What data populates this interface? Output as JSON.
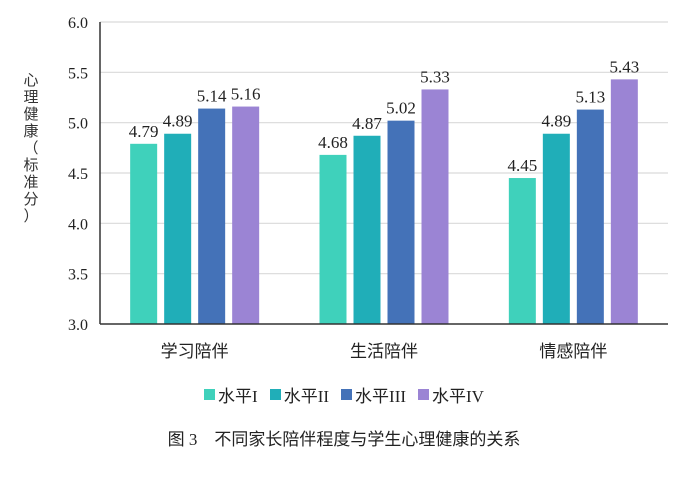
{
  "chart_data": {
    "type": "bar",
    "title": "",
    "xlabel": "",
    "ylabel": "心理健康（标准分）",
    "ylim": [
      3.0,
      6.0
    ],
    "yticks": [
      "3.0",
      "3.5",
      "4.0",
      "4.5",
      "5.0",
      "5.5",
      "6.0"
    ],
    "grid": true,
    "legend_position": "bottom",
    "categories": [
      "学习陪伴",
      "生活陪伴",
      "情感陪伴"
    ],
    "series": [
      {
        "name": "水平I",
        "color": "#3fd1bb",
        "values": [
          4.79,
          4.68,
          4.45
        ]
      },
      {
        "name": "水平II",
        "color": "#20aeb8",
        "values": [
          4.89,
          4.87,
          4.89
        ]
      },
      {
        "name": "水平III",
        "color": "#4472b8",
        "values": [
          5.14,
          5.02,
          5.13
        ]
      },
      {
        "name": "水平IV",
        "color": "#9b84d4",
        "values": [
          5.16,
          5.33,
          5.43
        ]
      }
    ]
  },
  "ylabel_chars": [
    "心",
    "理",
    "健",
    "康",
    "（",
    "标",
    "准",
    "分",
    "）"
  ],
  "legend": [
    {
      "label": "水平I",
      "color": "#3fd1bb"
    },
    {
      "label": "水平II",
      "color": "#20aeb8"
    },
    {
      "label": "水平III",
      "color": "#4472b8"
    },
    {
      "label": "水平IV",
      "color": "#9b84d4"
    }
  ],
  "caption": "图 3　不同家长陪伴程度与学生心理健康的关系"
}
